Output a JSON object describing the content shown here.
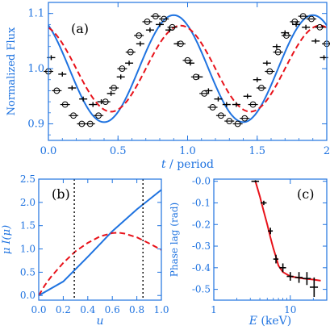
{
  "colors": {
    "axis": "#1f73e0",
    "model_red": "#e8121a",
    "model_blue": "#1f73e0",
    "data": "#000000"
  },
  "chart_data": [
    {
      "type": "line",
      "panel": "(a)",
      "title": "",
      "xlabel_var": "t",
      "xlabel_rest": " / period",
      "ylabel": "Normalized Flux",
      "xlim": [
        0,
        2
      ],
      "ylim": [
        0.87,
        1.12
      ],
      "xticks": [
        "0.0",
        "0.5",
        "1.0",
        "1.5",
        "2"
      ],
      "yticks": [
        "0.9",
        "1.0",
        "1.1"
      ],
      "series": [
        {
          "style": "solid-blue",
          "model": "sin",
          "mean": 1.0,
          "amp": 0.097,
          "phase": 0.15
        },
        {
          "style": "dashed-red",
          "model": "sin",
          "mean": 1.0,
          "amp": 0.078,
          "phase": 0.1
        }
      ],
      "points_circles": {
        "x": [
          0.0,
          0.06,
          0.12,
          0.18,
          0.24,
          0.3,
          0.36,
          0.41,
          0.47,
          0.53,
          0.59,
          0.65,
          0.71,
          0.77,
          0.83,
          0.89,
          0.95,
          1.0,
          1.06,
          1.12,
          1.18,
          1.24,
          1.3,
          1.36,
          1.41,
          1.47,
          1.53,
          1.59,
          1.65,
          1.71,
          1.77,
          1.83,
          1.89,
          1.95,
          2.0
        ],
        "y": [
          0.995,
          0.96,
          0.935,
          0.915,
          0.9,
          0.9,
          0.915,
          0.94,
          0.965,
          1.0,
          1.03,
          1.06,
          1.085,
          1.095,
          1.09,
          1.075,
          1.045,
          1.015,
          0.985,
          0.955,
          0.93,
          0.915,
          0.905,
          0.9,
          0.91,
          0.935,
          0.965,
          0.995,
          1.03,
          1.06,
          1.085,
          1.095,
          1.09,
          1.075,
          1.045
        ]
      },
      "points_crosses": {
        "x": [
          0.02,
          0.1,
          0.17,
          0.25,
          0.32,
          0.38,
          0.45,
          0.52,
          0.58,
          0.66,
          0.73,
          0.8,
          0.87,
          0.93,
          1.02,
          1.08,
          1.15,
          1.22,
          1.28,
          1.35,
          1.43,
          1.5,
          1.57,
          1.64,
          1.7,
          1.78,
          1.85,
          1.92,
          1.98
        ],
        "y": [
          1.02,
          0.99,
          0.965,
          0.945,
          0.935,
          0.94,
          0.955,
          0.985,
          1.01,
          1.045,
          1.07,
          1.08,
          1.07,
          1.045,
          1.01,
          0.985,
          0.96,
          0.945,
          0.935,
          0.935,
          0.95,
          0.98,
          1.01,
          1.04,
          1.065,
          1.08,
          1.075,
          1.05,
          1.02
        ]
      }
    },
    {
      "type": "line",
      "panel": "(b)",
      "title": "",
      "xlabel": "u",
      "ylabel_var": "μ I(μ)",
      "xlim": [
        0,
        1
      ],
      "ylim": [
        -0.1,
        2.5
      ],
      "xticks": [
        "0.0",
        "0.2",
        "0.4",
        "0.6",
        "0.8",
        "1.0"
      ],
      "yticks": [
        "0.0",
        "0.5",
        "1.0",
        "1.5",
        "2.0",
        "2.5"
      ],
      "series": [
        {
          "style": "solid-blue",
          "x": [
            0.0,
            0.2,
            0.4,
            0.6,
            0.8,
            1.0
          ],
          "y": [
            0.0,
            0.3,
            0.83,
            1.38,
            1.85,
            2.27
          ]
        },
        {
          "style": "dashed-red",
          "x": [
            0.0,
            0.05,
            0.1,
            0.2,
            0.3,
            0.4,
            0.5,
            0.6,
            0.65,
            0.7,
            0.8,
            0.9,
            1.0
          ],
          "y": [
            0.0,
            0.22,
            0.4,
            0.7,
            0.95,
            1.13,
            1.27,
            1.34,
            1.35,
            1.33,
            1.25,
            1.12,
            0.98
          ]
        }
      ],
      "vlines": [
        0.29,
        0.85
      ]
    },
    {
      "type": "scatter",
      "panel": "(c)",
      "title": "",
      "xlabel_var": "E",
      "xlabel_rest": " (keV)",
      "ylabel": "Phase lag (rad)",
      "xscale": "log",
      "xlim": [
        1,
        30
      ],
      "ylim": [
        -0.55,
        0.01
      ],
      "xtick_values": [
        1,
        10
      ],
      "xticks": [
        "1",
        "10"
      ],
      "yticks": [
        "-0.0",
        "-0.1",
        "-0.2",
        "-0.3",
        "-0.4",
        "-0.5"
      ],
      "points": {
        "x": [
          3.5,
          4.5,
          5.5,
          6.5,
          8.0,
          10.0,
          13.0,
          16.5,
          20.5
        ],
        "y": [
          0.0,
          -0.1,
          -0.23,
          -0.36,
          -0.4,
          -0.44,
          -0.445,
          -0.45,
          -0.49
        ],
        "yerr": [
          0.005,
          0.01,
          0.015,
          0.02,
          0.02,
          0.02,
          0.025,
          0.03,
          0.045
        ],
        "xerr_lo": [
          0.4,
          0.4,
          0.4,
          0.5,
          0.8,
          1.0,
          1.5,
          2.0,
          2.5
        ],
        "xerr_hi": [
          0.4,
          0.4,
          0.4,
          0.5,
          0.8,
          1.0,
          1.5,
          2.0,
          2.5
        ]
      },
      "model": {
        "style": "solid-red",
        "x": [
          3.5,
          4.0,
          4.5,
          5.0,
          5.5,
          6.0,
          6.5,
          7.0,
          8.0,
          10.0,
          15.0,
          20.0,
          25.0
        ],
        "y": [
          0.0,
          -0.07,
          -0.14,
          -0.2,
          -0.26,
          -0.31,
          -0.35,
          -0.39,
          -0.42,
          -0.44,
          -0.45,
          -0.455,
          -0.46
        ]
      }
    }
  ]
}
